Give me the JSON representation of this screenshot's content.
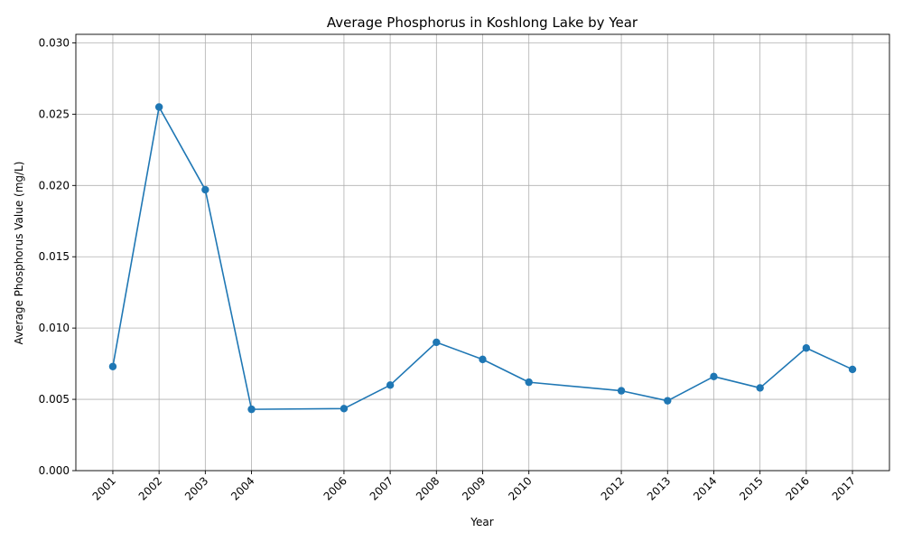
{
  "chart_data": {
    "type": "line",
    "title": "Average Phosphorus in Koshlong Lake by Year",
    "xlabel": "Year",
    "ylabel": "Average Phosphorus Value (mg/L)",
    "x": [
      2001,
      2002,
      2003,
      2004,
      2006,
      2007,
      2008,
      2009,
      2010,
      2012,
      2013,
      2014,
      2015,
      2016,
      2017
    ],
    "x_tick_labels": [
      "2001",
      "2002",
      "2003",
      "2004",
      "2006",
      "2007",
      "2008",
      "2009",
      "2010",
      "2012",
      "2013",
      "2014",
      "2015",
      "2016",
      "2017"
    ],
    "series": [
      {
        "values": [
          0.0073,
          0.0255,
          0.0197,
          0.0043,
          0.00435,
          0.006,
          0.009,
          0.0078,
          0.0062,
          0.0056,
          0.0049,
          0.0066,
          0.0058,
          0.0086,
          0.0071
        ],
        "color": "#1f77b4",
        "marker": "circle"
      }
    ],
    "y_ticks": [
      0.0,
      0.005,
      0.01,
      0.015,
      0.02,
      0.025,
      0.03
    ],
    "y_tick_labels": [
      "0.000",
      "0.005",
      "0.010",
      "0.015",
      "0.020",
      "0.025",
      "0.030"
    ],
    "xlim": [
      2000.2,
      2017.8
    ],
    "ylim": [
      0.0,
      0.0306
    ],
    "grid": true,
    "legend": "none"
  }
}
